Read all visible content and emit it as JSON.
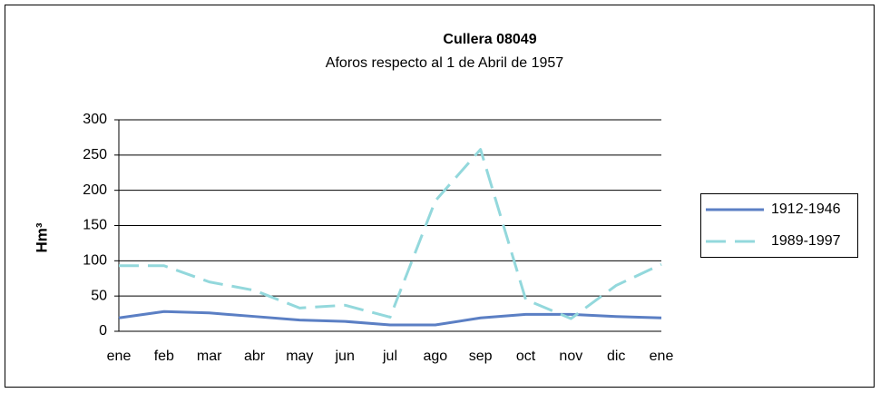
{
  "chart_data": {
    "type": "line",
    "title": "Cullera 08049",
    "subtitle": "Aforos respecto al 1 de Abril de 1957",
    "y_label": "Hm³",
    "categories": [
      "ene",
      "feb",
      "mar",
      "abr",
      "may",
      "jun",
      "jul",
      "ago",
      "sep",
      "oct",
      "nov",
      "dic",
      "ene"
    ],
    "series": [
      {
        "name": "1912-1946",
        "color": "#5b7fc4",
        "dashed": false,
        "values": [
          19,
          28,
          26,
          21,
          16,
          14,
          9,
          9,
          19,
          24,
          24,
          21,
          19
        ]
      },
      {
        "name": "1989-1997",
        "color": "#93d8dc",
        "dashed": true,
        "values": [
          93,
          93,
          70,
          58,
          33,
          37,
          20,
          185,
          258,
          45,
          18,
          65,
          95
        ]
      }
    ],
    "ylim": [
      0,
      300
    ],
    "yticks": [
      0,
      50,
      100,
      150,
      200,
      250,
      300
    ],
    "grid": true,
    "legend": "right"
  }
}
